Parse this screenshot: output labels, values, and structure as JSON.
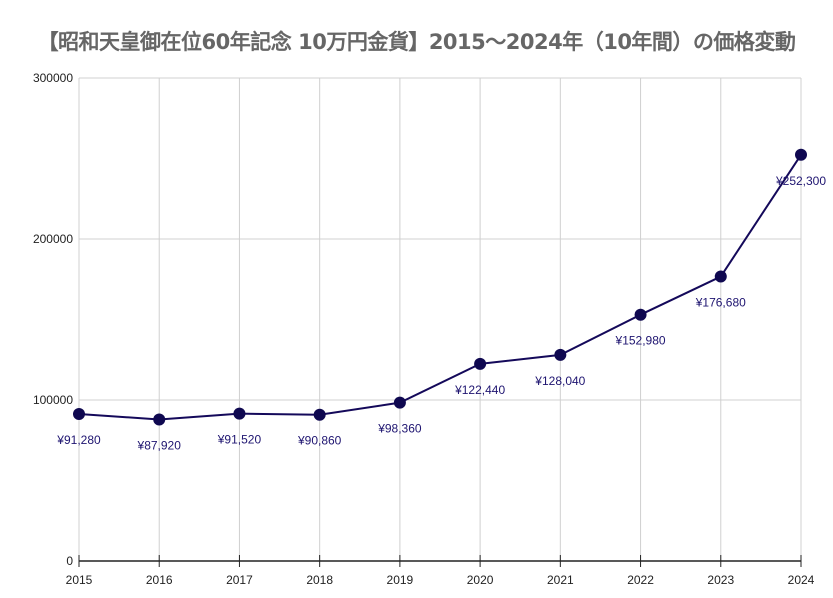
{
  "chart_data": {
    "type": "line",
    "title": "【昭和天皇御在位60年記念 10万円金貨】2015～2024年（10年間）の価格変動",
    "xlabel": "",
    "ylabel": "",
    "categories": [
      "2015",
      "2016",
      "2017",
      "2018",
      "2019",
      "2020",
      "2021",
      "2022",
      "2023",
      "2024"
    ],
    "values": [
      91280,
      87920,
      91520,
      90860,
      98360,
      122440,
      128040,
      152980,
      176680,
      252300
    ],
    "data_labels": [
      "¥91,280",
      "¥87,920",
      "¥91,520",
      "¥90,860",
      "¥98,360",
      "¥122,440",
      "¥128,040",
      "¥152,980",
      "¥176,680",
      "¥252,300"
    ],
    "ylim": [
      0,
      300000
    ],
    "yticks": [
      "0",
      "100000",
      "200000",
      "300000"
    ],
    "grid": true,
    "legend": "none",
    "colors": {
      "line": "#14095a",
      "marker": "#0f0850",
      "label": "#1e1470",
      "title": "#666666",
      "grid": "#d0d0d0"
    }
  }
}
